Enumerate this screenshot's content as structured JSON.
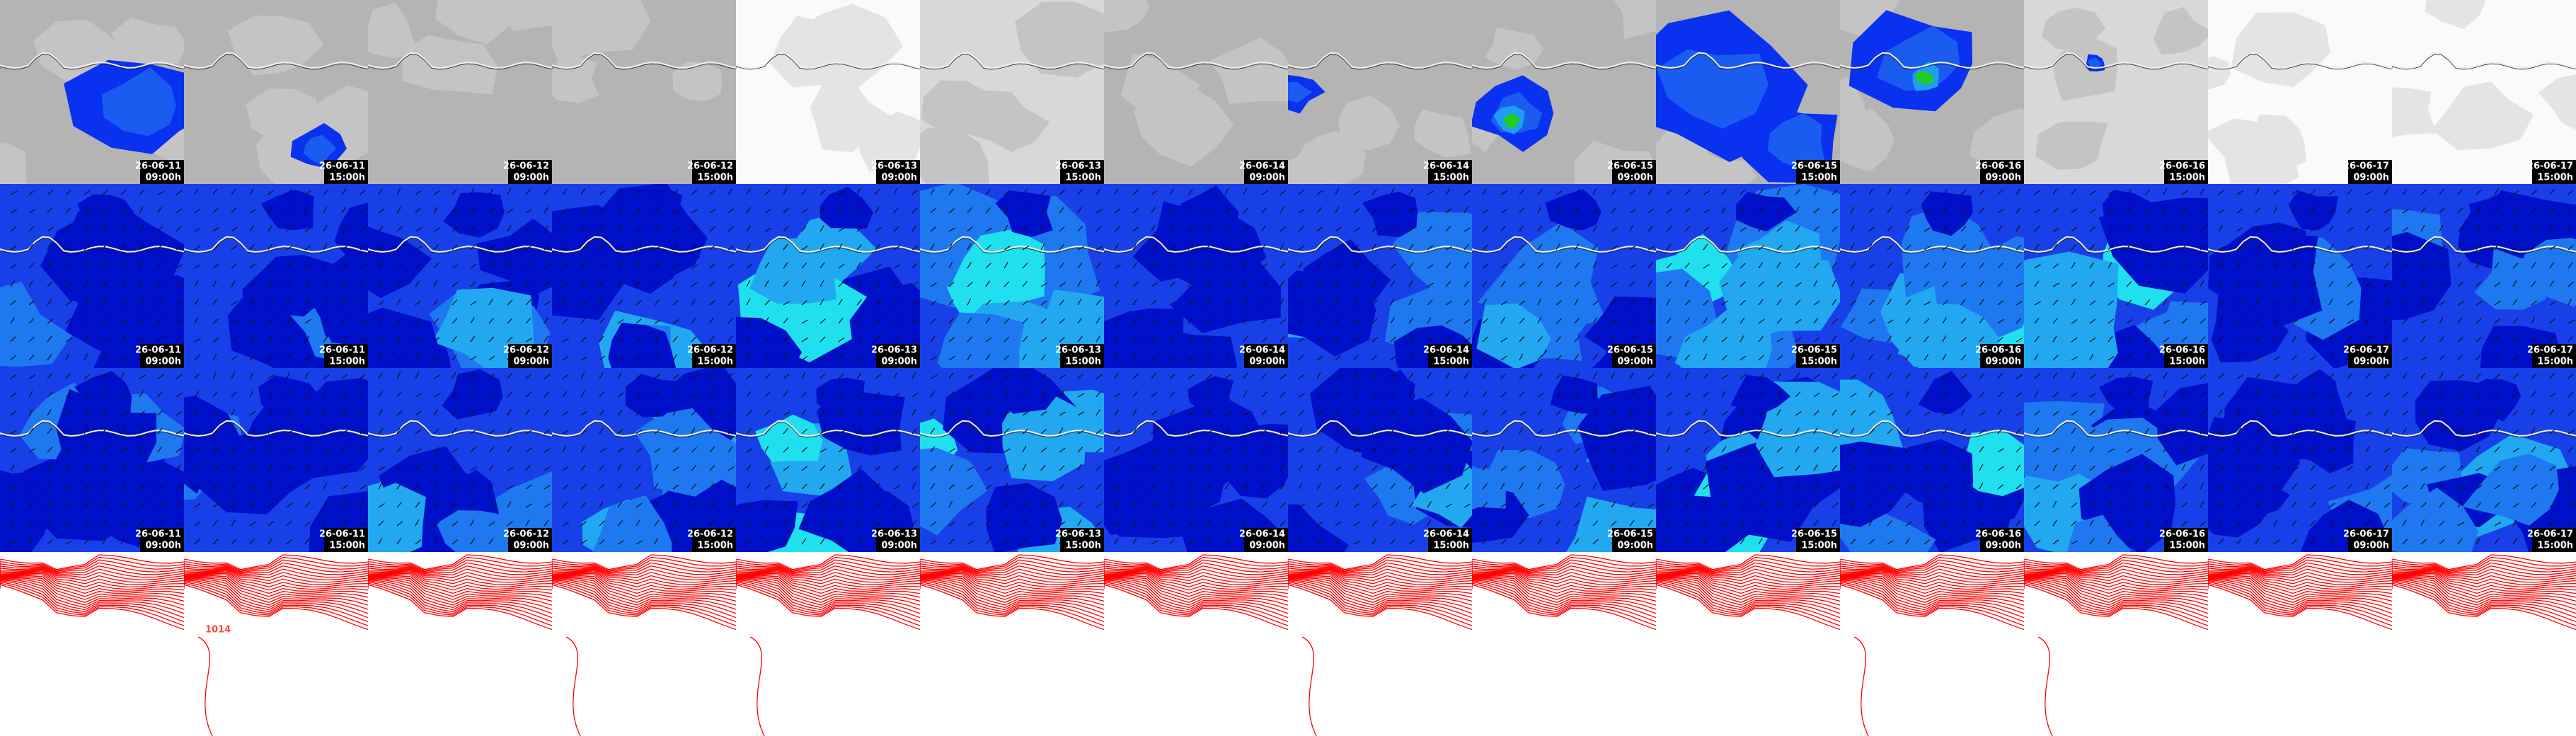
{
  "columns": [
    {
      "date": "26-06-11",
      "time": "09:00h"
    },
    {
      "date": "26-06-11",
      "time": "15:00h"
    },
    {
      "date": "26-06-12",
      "time": "09:00h"
    },
    {
      "date": "26-06-12",
      "time": "15:00h"
    },
    {
      "date": "26-06-13",
      "time": "09:00h"
    },
    {
      "date": "26-06-13",
      "time": "15:00h"
    },
    {
      "date": "26-06-14",
      "time": "09:00h"
    },
    {
      "date": "26-06-14",
      "time": "15:00h"
    },
    {
      "date": "26-06-15",
      "time": "09:00h"
    },
    {
      "date": "26-06-15",
      "time": "15:00h"
    },
    {
      "date": "26-06-16",
      "time": "09:00h"
    },
    {
      "date": "26-06-16",
      "time": "15:00h"
    },
    {
      "date": "26-06-17",
      "time": "09:00h"
    },
    {
      "date": "26-06-17",
      "time": "15:00h"
    }
  ],
  "isobar_label": "1014"
}
